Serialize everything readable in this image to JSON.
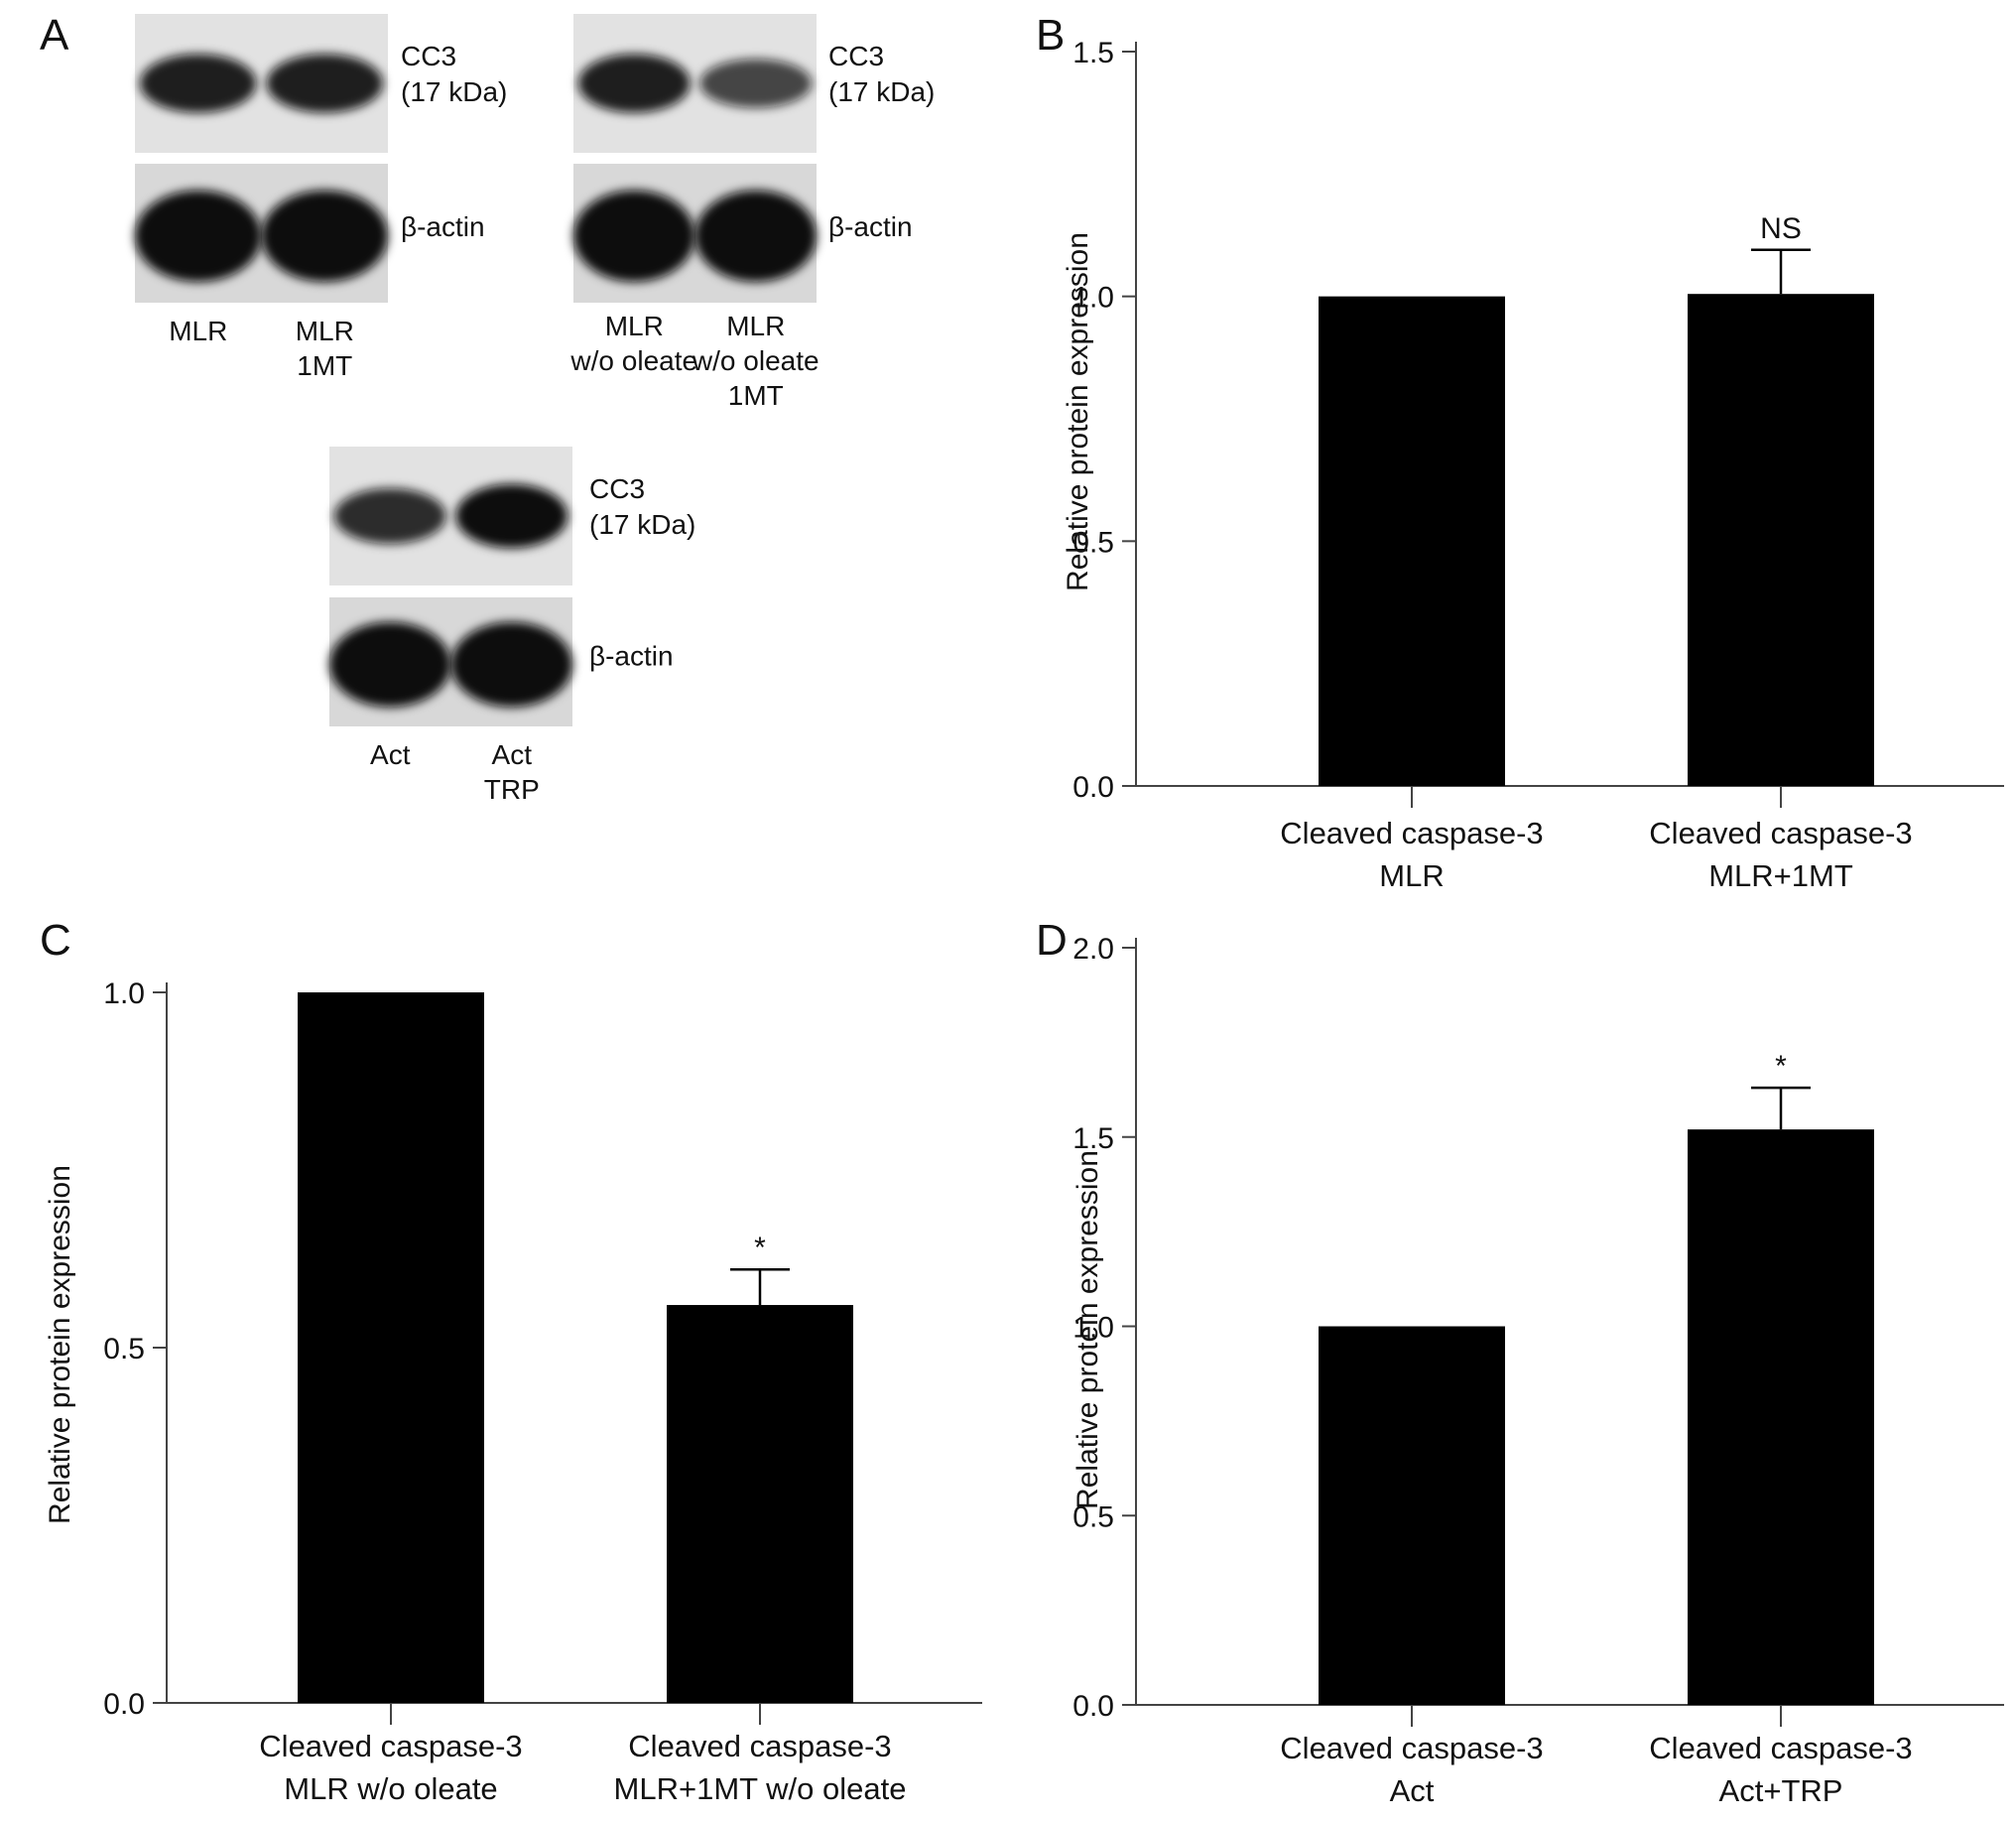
{
  "panel_a": {
    "letter": "A",
    "blots": [
      {
        "lanes": [
          [
            "MLR"
          ],
          [
            "MLR",
            "1MT"
          ]
        ],
        "cc3_label": [
          "CC3",
          "(17 kDa)"
        ],
        "actin_label": "β-actin",
        "cc3_band_intensity": [
          0.85,
          0.85
        ],
        "actin_band_intensity": [
          1.0,
          1.0
        ]
      },
      {
        "lanes": [
          [
            "MLR",
            "w/o oleate"
          ],
          [
            "MLR",
            "w/o oleate",
            "1MT"
          ]
        ],
        "cc3_label": [
          "CC3",
          "(17 kDa)"
        ],
        "actin_label": "β-actin",
        "cc3_band_intensity": [
          0.85,
          0.55
        ],
        "actin_band_intensity": [
          1.0,
          1.0
        ]
      },
      {
        "lanes": [
          [
            "Act"
          ],
          [
            "Act",
            "TRP"
          ]
        ],
        "cc3_label": [
          "CC3",
          "(17 kDa)"
        ],
        "actin_label": "β-actin",
        "cc3_band_intensity": [
          0.75,
          1.0
        ],
        "actin_band_intensity": [
          1.0,
          1.0
        ]
      }
    ]
  },
  "chart_data": [
    {
      "panel": "B",
      "type": "bar",
      "ylabel": "Relative protein expression",
      "ylim": [
        0,
        1.5
      ],
      "yticks": [
        "0.0",
        "0.5",
        "1.0",
        "1.5"
      ],
      "categories": [
        [
          "Cleaved caspase-3",
          "MLR"
        ],
        [
          "Cleaved caspase-3",
          "MLR+1MT"
        ]
      ],
      "values": [
        1.0,
        1.005
      ],
      "errors": [
        0,
        0.09
      ],
      "annotations": [
        "",
        "NS"
      ]
    },
    {
      "panel": "C",
      "type": "bar",
      "ylabel": "Relative protein expression",
      "ylim": [
        0,
        1.0
      ],
      "yticks": [
        "0.0",
        "0.5",
        "1.0"
      ],
      "categories": [
        [
          "Cleaved caspase-3",
          "MLR w/o oleate"
        ],
        [
          "Cleaved caspase-3",
          "MLR+1MT w/o oleate"
        ]
      ],
      "values": [
        1.0,
        0.56
      ],
      "errors": [
        0,
        0.05
      ],
      "annotations": [
        "",
        "*"
      ]
    },
    {
      "panel": "D",
      "type": "bar",
      "ylabel": "Relative protein expression",
      "ylim": [
        0,
        2.0
      ],
      "yticks": [
        "0.0",
        "0.5",
        "1.0",
        "1.5",
        "2.0"
      ],
      "categories": [
        [
          "Cleaved caspase-3",
          "Act"
        ],
        [
          "Cleaved caspase-3",
          "Act+TRP"
        ]
      ],
      "values": [
        1.0,
        1.52
      ],
      "errors": [
        0,
        0.11
      ],
      "annotations": [
        "",
        "*"
      ]
    }
  ]
}
